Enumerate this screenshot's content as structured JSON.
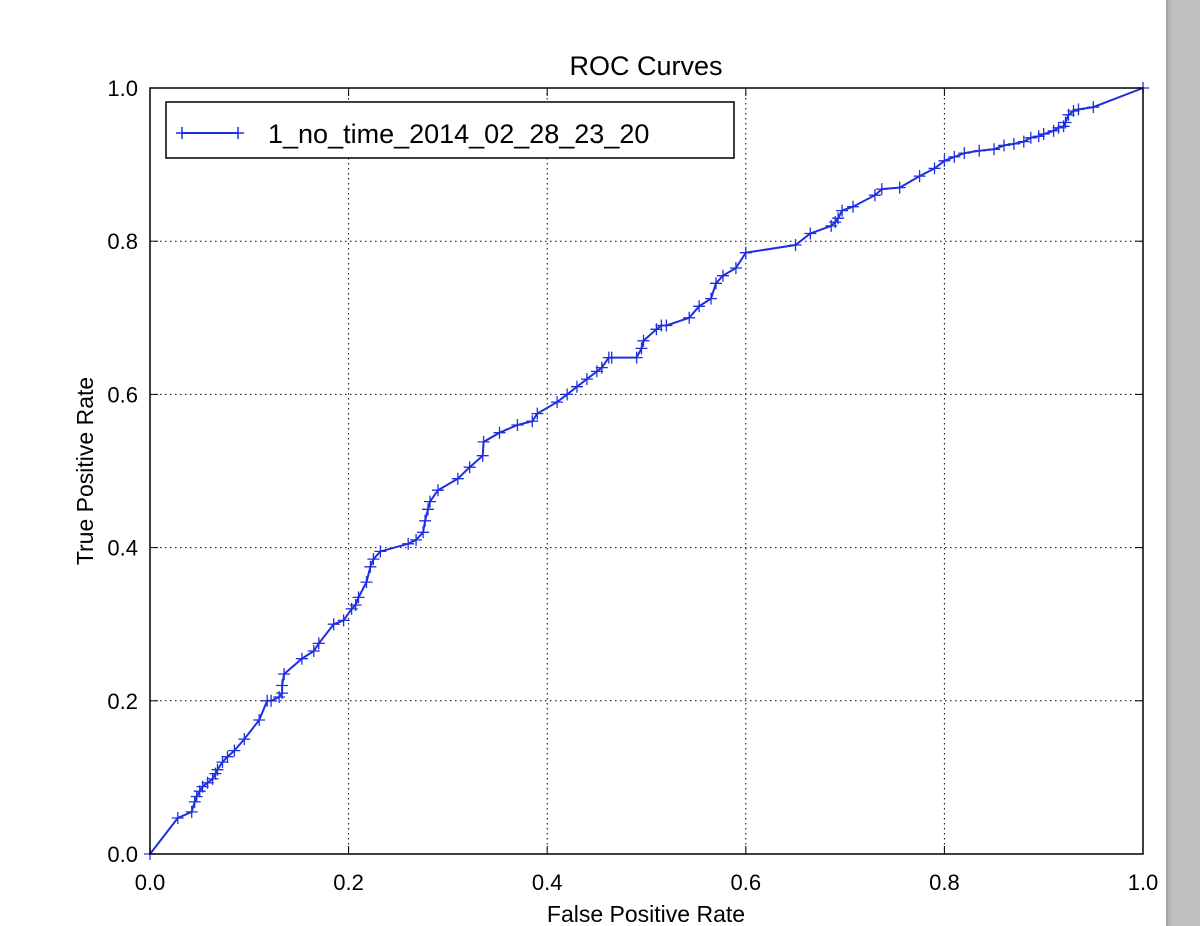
{
  "chart_data": {
    "type": "line",
    "title": "ROC Curves",
    "xlabel": "False Positive Rate",
    "ylabel": "True Positive Rate",
    "xlim": [
      0.0,
      1.0
    ],
    "ylim": [
      0.0,
      1.0
    ],
    "xticks": [
      "0.0",
      "0.2",
      "0.4",
      "0.6",
      "0.8",
      "1.0"
    ],
    "yticks": [
      "0.0",
      "0.2",
      "0.4",
      "0.6",
      "0.8",
      "1.0"
    ],
    "grid": true,
    "grid_style": "dotted",
    "legend_position": "upper-left",
    "marker": "+",
    "series": [
      {
        "name": "1_no_time_2014_02_28_23_20",
        "color": "#1f2fe0",
        "x": [
          0.0,
          0.028,
          0.042,
          0.045,
          0.047,
          0.05,
          0.053,
          0.058,
          0.063,
          0.066,
          0.068,
          0.073,
          0.078,
          0.085,
          0.095,
          0.11,
          0.118,
          0.122,
          0.13,
          0.133,
          0.133,
          0.135,
          0.153,
          0.165,
          0.17,
          0.185,
          0.195,
          0.203,
          0.207,
          0.21,
          0.218,
          0.222,
          0.225,
          0.232,
          0.26,
          0.268,
          0.275,
          0.277,
          0.28,
          0.282,
          0.29,
          0.31,
          0.322,
          0.335,
          0.336,
          0.352,
          0.37,
          0.385,
          0.39,
          0.41,
          0.42,
          0.43,
          0.44,
          0.45,
          0.455,
          0.462,
          0.465,
          0.49,
          0.495,
          0.497,
          0.51,
          0.515,
          0.52,
          0.543,
          0.553,
          0.565,
          0.57,
          0.577,
          0.59,
          0.6,
          0.65,
          0.665,
          0.686,
          0.69,
          0.693,
          0.697,
          0.708,
          0.73,
          0.737,
          0.755,
          0.775,
          0.79,
          0.8,
          0.81,
          0.82,
          0.835,
          0.85,
          0.86,
          0.87,
          0.88,
          0.887,
          0.895,
          0.9,
          0.91,
          0.915,
          0.92,
          0.922,
          0.925,
          0.93,
          0.935,
          0.95,
          1.0
        ],
        "y": [
          0.0,
          0.047,
          0.055,
          0.068,
          0.075,
          0.082,
          0.088,
          0.093,
          0.098,
          0.105,
          0.11,
          0.12,
          0.127,
          0.135,
          0.15,
          0.175,
          0.2,
          0.2,
          0.205,
          0.21,
          0.22,
          0.235,
          0.255,
          0.265,
          0.275,
          0.3,
          0.305,
          0.32,
          0.325,
          0.335,
          0.355,
          0.375,
          0.385,
          0.395,
          0.405,
          0.41,
          0.42,
          0.435,
          0.45,
          0.46,
          0.475,
          0.49,
          0.505,
          0.52,
          0.538,
          0.55,
          0.56,
          0.565,
          0.575,
          0.59,
          0.6,
          0.61,
          0.62,
          0.63,
          0.635,
          0.648,
          0.648,
          0.648,
          0.66,
          0.67,
          0.685,
          0.69,
          0.69,
          0.7,
          0.715,
          0.725,
          0.745,
          0.755,
          0.765,
          0.785,
          0.795,
          0.81,
          0.82,
          0.825,
          0.83,
          0.84,
          0.845,
          0.86,
          0.868,
          0.87,
          0.885,
          0.895,
          0.905,
          0.91,
          0.915,
          0.918,
          0.92,
          0.925,
          0.927,
          0.93,
          0.935,
          0.937,
          0.94,
          0.944,
          0.948,
          0.95,
          0.955,
          0.965,
          0.97,
          0.972,
          0.975,
          1.0
        ]
      }
    ]
  }
}
